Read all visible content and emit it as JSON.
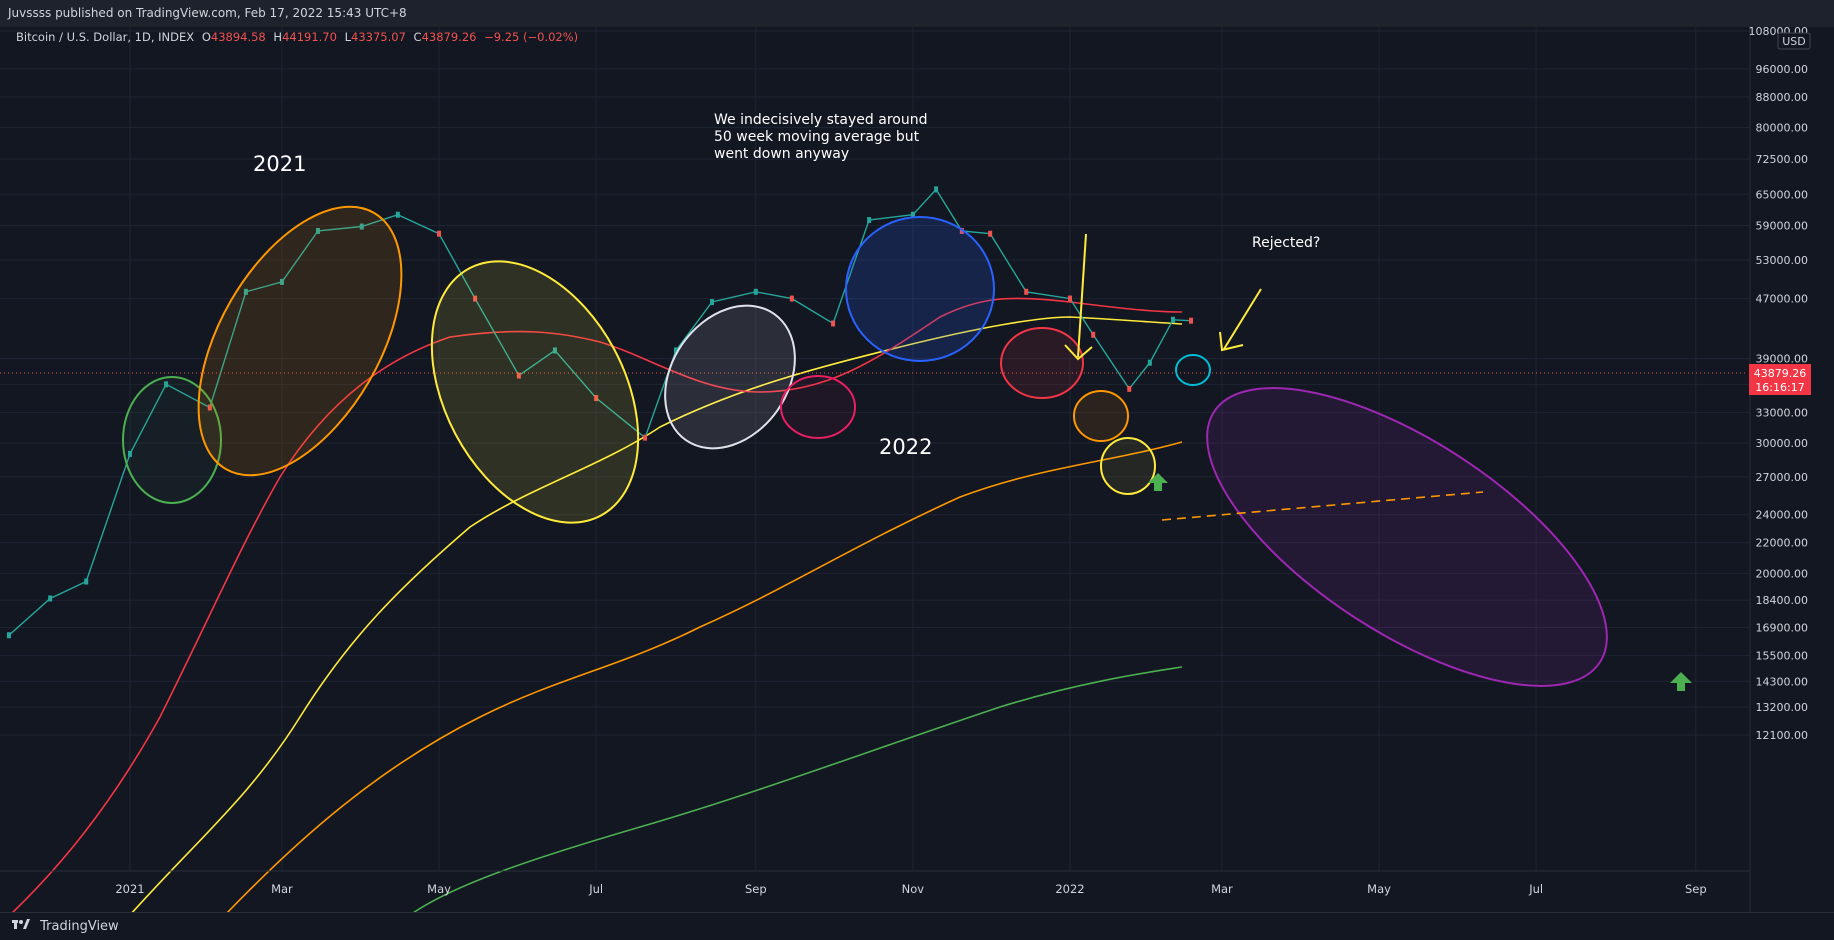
{
  "header": {
    "published": "Juvssss published on TradingView.com, Feb 17, 2022 15:43 UTC+8"
  },
  "footer": {
    "brand": "TradingView"
  },
  "symbol": {
    "name": "Bitcoin / U.S. Dollar, 1D, INDEX",
    "o_label": "O",
    "o": "43894.58",
    "h_label": "H",
    "h": "44191.70",
    "l_label": "L",
    "l": "43375.07",
    "c_label": "C",
    "c": "43879.26",
    "change": "−9.25 (−0.02%)"
  },
  "price_axis": {
    "currency": "USD",
    "ticks": [
      "108000.00",
      "96000.00",
      "88000.00",
      "80000.00",
      "72500.00",
      "65000.00",
      "59000.00",
      "53000.00",
      "47000.00",
      "39000.00",
      "36000.00",
      "33000.00",
      "30000.00",
      "27000.00",
      "24000.00",
      "22000.00",
      "20000.00",
      "18400.00",
      "16900.00",
      "15500.00",
      "14300.00",
      "13200.00",
      "12100.00"
    ],
    "last_price": "43879.26",
    "countdown": "16:16:17"
  },
  "time_axis": {
    "ticks": [
      "2021",
      "Mar",
      "May",
      "Jul",
      "Sep",
      "Nov",
      "2022",
      "Mar",
      "May",
      "Jul",
      "Sep"
    ]
  },
  "annotations": {
    "year_2021": "2021",
    "year_2022": "2022",
    "note_line1": "We indecisively stayed around",
    "note_line2": "50 week moving average but",
    "note_line3": "went down anyway",
    "rejected": "Rejected?"
  },
  "colors": {
    "background": "#131722",
    "up": "#26a69a",
    "down": "#ef5350",
    "ma_red": "#f23645",
    "ma_yellow": "#ffeb3b",
    "ma_orange": "#ff9800",
    "ma_green": "#4caf50",
    "accent_purple": "#9c27b0"
  },
  "chart_data": {
    "type": "line",
    "title": "Bitcoin / U.S. Dollar, 1D, INDEX",
    "scale": "log",
    "ylim": [
      11500,
      108000
    ],
    "x": [
      "2020-11-15",
      "2020-12-01",
      "2020-12-15",
      "2021-01-01",
      "2021-01-15",
      "2021-02-01",
      "2021-02-15",
      "2021-03-01",
      "2021-03-15",
      "2021-04-01",
      "2021-04-15",
      "2021-05-01",
      "2021-05-15",
      "2021-06-01",
      "2021-06-15",
      "2021-07-01",
      "2021-07-20",
      "2021-08-01",
      "2021-08-15",
      "2021-09-01",
      "2021-09-15",
      "2021-10-01",
      "2021-10-15",
      "2021-11-01",
      "2021-11-10",
      "2021-11-20",
      "2021-12-01",
      "2021-12-15",
      "2022-01-01",
      "2022-01-10",
      "2022-01-24",
      "2022-02-01",
      "2022-02-10",
      "2022-02-17"
    ],
    "series": [
      {
        "values": [
          16500,
          18500,
          19500,
          29000,
          36000,
          33500,
          48000,
          49500,
          58000,
          58800,
          61000,
          57500,
          47000,
          37000,
          40000,
          34500,
          30500,
          40000,
          46500,
          48000,
          47000,
          43500,
          60000,
          61000,
          66000,
          58000,
          57500,
          48000,
          47000,
          42000,
          35500,
          38500,
          44000,
          43879
        ]
      }
    ]
  }
}
